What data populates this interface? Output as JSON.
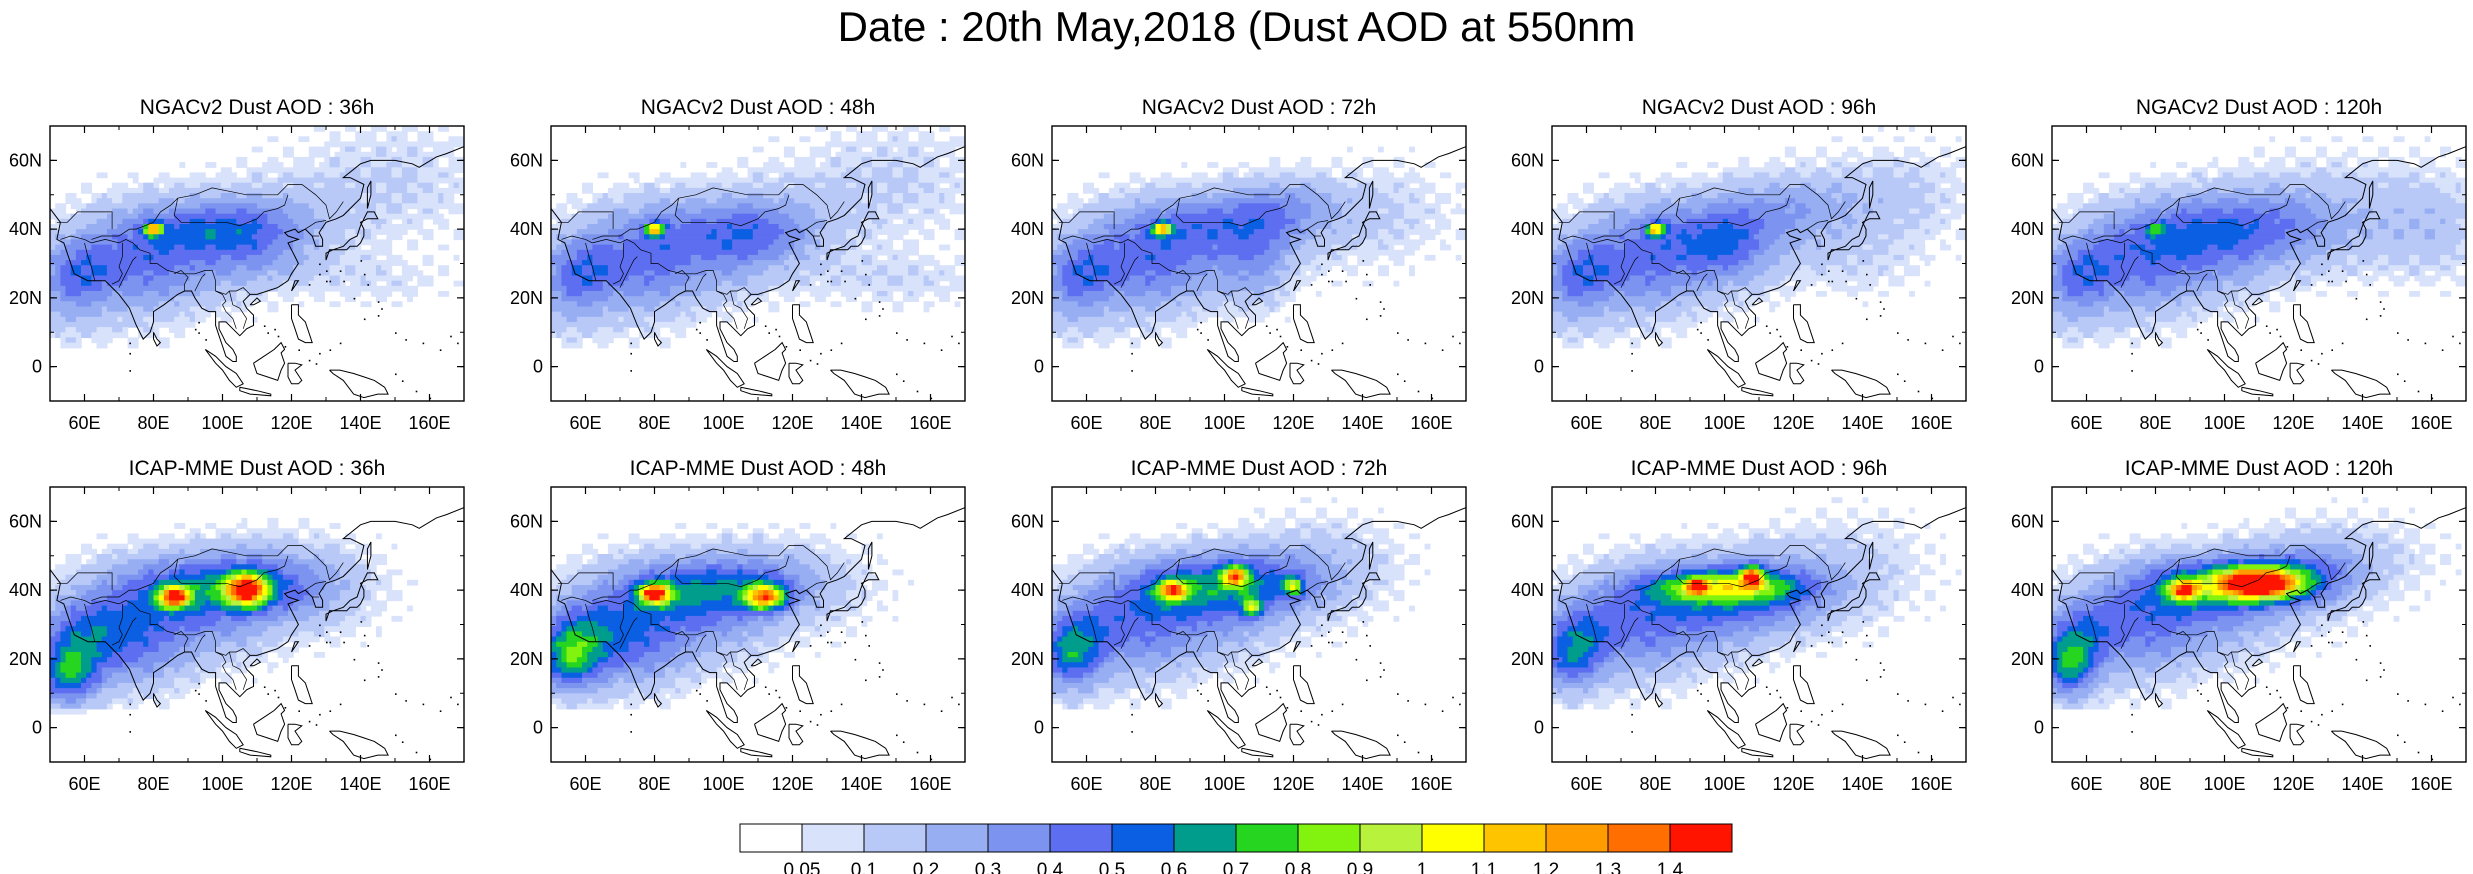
{
  "figure": {
    "title": "Date : 20th May,2018 (Dust AOD at 550nm"
  },
  "map_axes": {
    "lat_ticks": [
      "60N",
      "40N",
      "20N",
      "0"
    ],
    "lon_ticks": [
      "60E",
      "80E",
      "100E",
      "120E",
      "140E",
      "160E"
    ],
    "lat_range": [
      -10,
      70
    ],
    "lon_range": [
      50,
      170
    ]
  },
  "panels": [
    {
      "title": "NGACv2 Dust AOD : 36h",
      "model": "NGACv2",
      "lead": "36h"
    },
    {
      "title": "NGACv2 Dust AOD : 48h",
      "model": "NGACv2",
      "lead": "48h"
    },
    {
      "title": "NGACv2 Dust AOD : 72h",
      "model": "NGACv2",
      "lead": "72h"
    },
    {
      "title": "NGACv2 Dust AOD : 96h",
      "model": "NGACv2",
      "lead": "96h"
    },
    {
      "title": "NGACv2 Dust AOD : 120h",
      "model": "NGACv2",
      "lead": "120h"
    },
    {
      "title": "ICAP-MME Dust AOD : 36h",
      "model": "ICAP-MME",
      "lead": "36h"
    },
    {
      "title": "ICAP-MME Dust AOD : 48h",
      "model": "ICAP-MME",
      "lead": "48h"
    },
    {
      "title": "ICAP-MME Dust AOD : 72h",
      "model": "ICAP-MME",
      "lead": "72h"
    },
    {
      "title": "ICAP-MME Dust AOD : 96h",
      "model": "ICAP-MME",
      "lead": "96h"
    },
    {
      "title": "ICAP-MME Dust AOD : 120h",
      "model": "ICAP-MME",
      "lead": "120h"
    }
  ],
  "colorbar": {
    "labels": [
      "0.05",
      "0.1",
      "0.2",
      "0.3",
      "0.4",
      "0.5",
      "0.6",
      "0.7",
      "0.8",
      "0.9",
      "1",
      "1.1",
      "1.2",
      "1.3",
      "1.4"
    ],
    "colors": [
      "#ffffff",
      "#d8e2fb",
      "#b9c9f7",
      "#98aef3",
      "#7c93ef",
      "#5d6ff0",
      "#0a5fe3",
      "#009c8c",
      "#25d520",
      "#82f20f",
      "#b9f23c",
      "#ffff00",
      "#ffc400",
      "#ff9c00",
      "#ff6e00",
      "#ff1400"
    ]
  }
}
